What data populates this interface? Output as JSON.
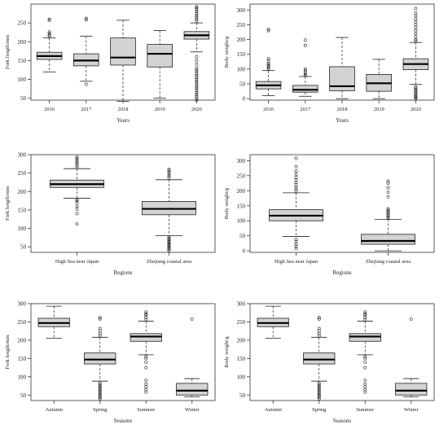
{
  "chart_data": [
    {
      "type": "boxplot",
      "xlabel": "Years",
      "ylabel": "Fork length/mm",
      "ylim": [
        45,
        300
      ],
      "yticks": [
        50,
        100,
        150,
        200,
        250
      ],
      "categories": [
        "2016",
        "2017",
        "2018",
        "2019",
        "2020"
      ],
      "boxes": [
        {
          "low": 120,
          "q1": 153,
          "median": 162,
          "q3": 172,
          "high": 210,
          "outliers": [
            215,
            218,
            222,
            226,
            257,
            260
          ]
        },
        {
          "low": 95,
          "q1": 136,
          "median": 150,
          "q3": 168,
          "high": 215,
          "outliers": [
            87,
            258,
            262
          ]
        },
        {
          "low": 42,
          "q1": 138,
          "median": 158,
          "q3": 210,
          "high": 257,
          "outliers": []
        },
        {
          "low": 50,
          "q1": 133,
          "median": 168,
          "q3": 193,
          "high": 230,
          "outliers": []
        },
        {
          "low": 173,
          "q1": 207,
          "median": 217,
          "q3": 227,
          "high": 250,
          "outliers": [
            45,
            50,
            55,
            60,
            65,
            70,
            75,
            80,
            85,
            90,
            95,
            100,
            105,
            110,
            115,
            120,
            125,
            130,
            140,
            150,
            160,
            255,
            260,
            265,
            270,
            275,
            280,
            285,
            290,
            293
          ]
        }
      ]
    },
    {
      "type": "boxplot",
      "xlabel": "Years",
      "ylabel": "Body weight/g",
      "ylim": [
        -5,
        320
      ],
      "yticks": [
        0,
        50,
        100,
        150,
        200,
        250,
        300
      ],
      "categories": [
        "2016",
        "2017",
        "2018",
        "2019",
        "2020"
      ],
      "boxes": [
        {
          "low": 10,
          "q1": 33,
          "median": 45,
          "q3": 58,
          "high": 95,
          "outliers": [
            100,
            105,
            110,
            115,
            120,
            128,
            135,
            230,
            235
          ]
        },
        {
          "low": 8,
          "q1": 22,
          "median": 30,
          "q3": 45,
          "high": 75,
          "outliers": [
            78,
            82,
            88,
            95,
            100,
            180,
            198
          ]
        },
        {
          "low": 0,
          "q1": 27,
          "median": 42,
          "q3": 108,
          "high": 207,
          "outliers": []
        },
        {
          "low": 0,
          "q1": 25,
          "median": 52,
          "q3": 82,
          "high": 133,
          "outliers": []
        },
        {
          "low": 48,
          "q1": 98,
          "median": 117,
          "q3": 135,
          "high": 190,
          "outliers": [
            0,
            3,
            6,
            10,
            14,
            18,
            22,
            26,
            30,
            35,
            40,
            195,
            200,
            210,
            220,
            230,
            240,
            250,
            260,
            270,
            280,
            290,
            305
          ]
        }
      ]
    },
    {
      "type": "boxplot",
      "xlabel": "Regions",
      "ylabel": "Fork length/mm",
      "ylim": [
        35,
        300
      ],
      "yticks": [
        50,
        100,
        150,
        200,
        250,
        300
      ],
      "categories": [
        "High Sea near Japan",
        "Zhejiang coastal area"
      ],
      "boxes": [
        {
          "low": 182,
          "q1": 211,
          "median": 220,
          "q3": 231,
          "high": 262,
          "outliers": [
            112,
            140,
            152,
            160,
            170,
            175,
            178,
            265,
            270,
            275,
            280,
            285,
            290,
            294
          ]
        },
        {
          "low": 80,
          "q1": 137,
          "median": 153,
          "q3": 173,
          "high": 232,
          "outliers": [
            40,
            43,
            46,
            49,
            52,
            55,
            58,
            61,
            64,
            67,
            70,
            73,
            76,
            237,
            242,
            247,
            252,
            257,
            260
          ]
        }
      ]
    },
    {
      "type": "boxplot",
      "xlabel": "Regions",
      "ylabel": "Body weight/g",
      "ylim": [
        -5,
        320
      ],
      "yticks": [
        0,
        50,
        100,
        150,
        200,
        250,
        300
      ],
      "categories": [
        "High Sea near Japan",
        "Zhejiang coastal area"
      ],
      "boxes": [
        {
          "low": 48,
          "q1": 100,
          "median": 117,
          "q3": 137,
          "high": 193,
          "outliers": [
            8,
            15,
            22,
            30,
            38,
            198,
            205,
            212,
            220,
            228,
            236,
            245,
            255,
            265,
            280,
            308
          ]
        },
        {
          "low": 0,
          "q1": 22,
          "median": 33,
          "q3": 55,
          "high": 105,
          "outliers": [
            108,
            112,
            116,
            120,
            125,
            130,
            135,
            140,
            180,
            195,
            210,
            225,
            232
          ]
        }
      ]
    },
    {
      "type": "boxplot",
      "xlabel": "Seasons",
      "ylabel": "Fork length/mm",
      "ylim": [
        35,
        300
      ],
      "yticks": [
        50,
        100,
        150,
        200,
        250,
        300
      ],
      "categories": [
        "Autumn",
        "Spring",
        "Summer",
        "Winter"
      ],
      "boxes": [
        {
          "low": 205,
          "q1": 237,
          "median": 247,
          "q3": 260,
          "high": 293,
          "outliers": []
        },
        {
          "low": 88,
          "q1": 135,
          "median": 147,
          "q3": 165,
          "high": 208,
          "outliers": [
            40,
            43,
            46,
            50,
            54,
            58,
            62,
            66,
            70,
            74,
            78,
            82,
            212,
            218,
            225,
            232,
            258,
            262
          ]
        },
        {
          "low": 160,
          "q1": 197,
          "median": 210,
          "q3": 218,
          "high": 252,
          "outliers": [
            58,
            65,
            72,
            80,
            90,
            125,
            140,
            150,
            155,
            256,
            262,
            268,
            272,
            277
          ]
        },
        {
          "low": 45,
          "q1": 50,
          "median": 62,
          "q3": 82,
          "high": 95,
          "outliers": [
            258
          ]
        }
      ]
    },
    {
      "type": "boxplot",
      "xlabel": "Seasons",
      "ylabel": "Body weight/g",
      "ylim": [
        35,
        300
      ],
      "yticks": [
        50,
        100,
        150,
        200,
        250,
        300
      ],
      "categories": [
        "Autumn",
        "Spring",
        "Summer",
        "Winter"
      ],
      "boxes": [
        {
          "low": 205,
          "q1": 237,
          "median": 247,
          "q3": 260,
          "high": 293,
          "outliers": []
        },
        {
          "low": 88,
          "q1": 135,
          "median": 147,
          "q3": 165,
          "high": 208,
          "outliers": [
            40,
            43,
            46,
            50,
            54,
            58,
            62,
            66,
            70,
            74,
            78,
            82,
            212,
            218,
            225,
            232,
            258,
            262
          ]
        },
        {
          "low": 160,
          "q1": 197,
          "median": 210,
          "q3": 218,
          "high": 252,
          "outliers": [
            58,
            65,
            72,
            80,
            90,
            125,
            140,
            150,
            155,
            256,
            262,
            268,
            272,
            277
          ]
        },
        {
          "low": 45,
          "q1": 50,
          "median": 62,
          "q3": 82,
          "high": 95,
          "outliers": [
            258
          ]
        }
      ]
    }
  ]
}
